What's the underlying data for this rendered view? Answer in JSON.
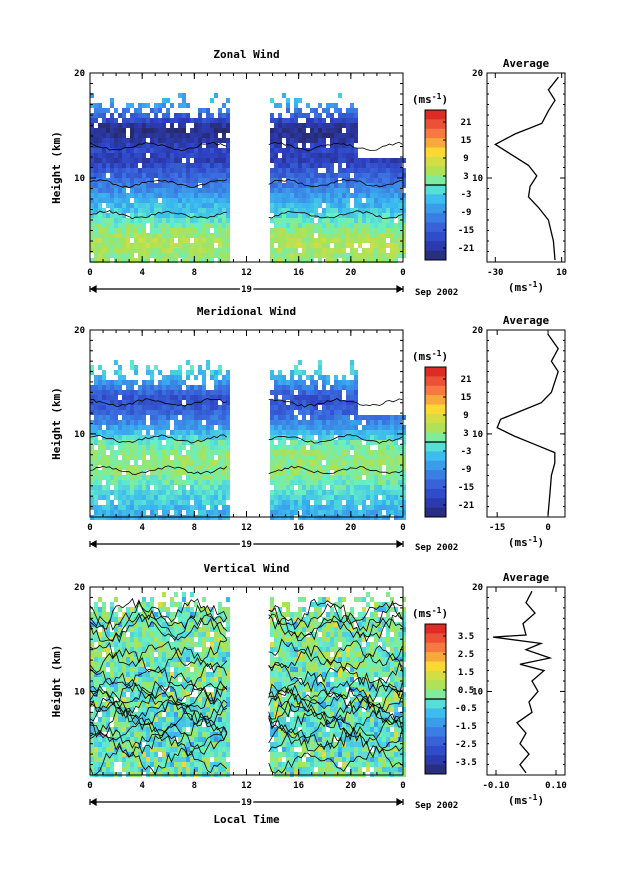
{
  "chart_data": [
    {
      "type": "heatmap",
      "title": "Zonal Wind",
      "ylabel": "Height (km)",
      "yticks": [
        "10",
        "20"
      ],
      "xticks": [
        "0",
        "4",
        "8",
        "12",
        "16",
        "20",
        "0"
      ],
      "day_label": "19",
      "date_label": "Sep 2002",
      "colorbar_unit": "(ms",
      "colorbar_unit_sup": "-1",
      "colorbar_unit_end": ")",
      "colorbar_ticks": [
        "21",
        "15",
        "9",
        "3",
        "-3",
        "-9",
        "-15",
        "-21"
      ],
      "colorbar_range": [
        -24,
        24
      ],
      "ylim": [
        2,
        20
      ],
      "xlim": [
        0,
        24
      ],
      "data_gap_hours": [
        10.5,
        13.7
      ],
      "rows": [
        {
          "h": 17.5,
          "v": -5
        },
        {
          "h": 16.5,
          "v": -12
        },
        {
          "h": 15.0,
          "v": -22
        },
        {
          "h": 14.0,
          "v": -21
        },
        {
          "h": 13.0,
          "v": -17
        },
        {
          "h": 12.0,
          "v": -19
        },
        {
          "h": 11.0,
          "v": -15
        },
        {
          "h": 10.0,
          "v": -12
        },
        {
          "h": 9.0,
          "v": -9
        },
        {
          "h": 8.0,
          "v": -6
        },
        {
          "h": 7.0,
          "v": -3
        },
        {
          "h": 6.0,
          "v": 0
        },
        {
          "h": 5.0,
          "v": 3
        },
        {
          "h": 4.0,
          "v": 5
        },
        {
          "h": 3.0,
          "v": 3
        }
      ],
      "average": {
        "title": "Average",
        "xticks": [
          "-30",
          "10"
        ],
        "xlim": [
          -35,
          12
        ],
        "ylim": [
          2,
          20
        ],
        "yticks": [
          "10",
          "20"
        ],
        "xlabel": "(ms",
        "xlabel_sup": "-1",
        "xlabel_end": ")",
        "profile": [
          {
            "h": 2.2,
            "v": 6
          },
          {
            "h": 4,
            "v": 5
          },
          {
            "h": 6,
            "v": 2
          },
          {
            "h": 7.2,
            "v": -4
          },
          {
            "h": 8.2,
            "v": -10
          },
          {
            "h": 9.2,
            "v": -9
          },
          {
            "h": 10.2,
            "v": -5
          },
          {
            "h": 11.2,
            "v": -10
          },
          {
            "h": 12.4,
            "v": -22
          },
          {
            "h": 13.2,
            "v": -30
          },
          {
            "h": 14.2,
            "v": -18
          },
          {
            "h": 15.2,
            "v": -2
          },
          {
            "h": 16.4,
            "v": 2
          },
          {
            "h": 17.4,
            "v": 6
          },
          {
            "h": 18.4,
            "v": 2
          },
          {
            "h": 19.6,
            "v": 8
          }
        ]
      }
    },
    {
      "type": "heatmap",
      "title": "Meridional Wind",
      "ylabel": "Height (km)",
      "yticks": [
        "10",
        "20"
      ],
      "xticks": [
        "0",
        "4",
        "8",
        "12",
        "16",
        "20",
        "0"
      ],
      "day_label": "19",
      "date_label": "Sep 2002",
      "colorbar_unit": "(ms",
      "colorbar_unit_sup": "-1",
      "colorbar_unit_end": ")",
      "colorbar_ticks": [
        "21",
        "15",
        "9",
        "3",
        "-3",
        "-9",
        "-15",
        "-21"
      ],
      "colorbar_range": [
        -24,
        24
      ],
      "ylim": [
        2,
        20
      ],
      "xlim": [
        0,
        24
      ],
      "data_gap_hours": [
        10.5,
        13.7
      ],
      "rows": [
        {
          "h": 16.5,
          "v": -2
        },
        {
          "h": 15.5,
          "v": -6
        },
        {
          "h": 14.5,
          "v": -12
        },
        {
          "h": 13.5,
          "v": -16
        },
        {
          "h": 12.5,
          "v": -14
        },
        {
          "h": 11.5,
          "v": -10
        },
        {
          "h": 10.5,
          "v": -6
        },
        {
          "h": 9.5,
          "v": 0
        },
        {
          "h": 8.5,
          "v": 2
        },
        {
          "h": 7.5,
          "v": 3
        },
        {
          "h": 6.5,
          "v": 2
        },
        {
          "h": 5.5,
          "v": 0
        },
        {
          "h": 4.5,
          "v": -2
        },
        {
          "h": 3.5,
          "v": -4
        },
        {
          "h": 2.5,
          "v": -6
        }
      ],
      "average": {
        "title": "Average",
        "xticks": [
          "-15",
          "0"
        ],
        "xlim": [
          -18,
          5
        ],
        "ylim": [
          2,
          20
        ],
        "yticks": [
          "10",
          "20"
        ],
        "xlabel": "(ms",
        "xlabel_sup": "-1",
        "xlabel_end": ")",
        "profile": [
          {
            "h": 2.2,
            "v": 0
          },
          {
            "h": 4,
            "v": 0.5
          },
          {
            "h": 6,
            "v": 1
          },
          {
            "h": 7.2,
            "v": 2
          },
          {
            "h": 8.2,
            "v": 2
          },
          {
            "h": 9.0,
            "v": -4
          },
          {
            "h": 9.8,
            "v": -10
          },
          {
            "h": 10.6,
            "v": -15
          },
          {
            "h": 11.4,
            "v": -14
          },
          {
            "h": 12.2,
            "v": -8
          },
          {
            "h": 13.0,
            "v": -2
          },
          {
            "h": 14.0,
            "v": 1
          },
          {
            "h": 15.0,
            "v": 2
          },
          {
            "h": 16.0,
            "v": 3
          },
          {
            "h": 17.0,
            "v": 1
          },
          {
            "h": 18.2,
            "v": 3
          },
          {
            "h": 19.6,
            "v": 0
          }
        ]
      }
    },
    {
      "type": "heatmap",
      "title": "Vertical Wind",
      "ylabel": "Height (km)",
      "xlabel": "Local Time",
      "yticks": [
        "10",
        "20"
      ],
      "xticks": [
        "0",
        "4",
        "8",
        "12",
        "16",
        "20",
        "0"
      ],
      "day_label": "19",
      "date_label": "Sep 2002",
      "colorbar_unit": "(ms",
      "colorbar_unit_sup": "-1",
      "colorbar_unit_end": ")",
      "colorbar_ticks": [
        "3.5",
        "2.5",
        "1.5",
        "0.5",
        "-0.5",
        "-1.5",
        "-2.5",
        "-3.5"
      ],
      "colorbar_range": [
        -4,
        4
      ],
      "ylim": [
        2,
        20
      ],
      "xlim": [
        0,
        24
      ],
      "data_gap_hours": [
        10.5,
        13.7
      ],
      "rows": [
        {
          "h": 19,
          "v": 0.2
        },
        {
          "h": 17,
          "v": 0.1
        },
        {
          "h": 15,
          "v": 0.3
        },
        {
          "h": 13,
          "v": 0.2
        },
        {
          "h": 11,
          "v": 0
        },
        {
          "h": 9,
          "v": 0.1
        },
        {
          "h": 7,
          "v": -0.2
        },
        {
          "h": 5,
          "v": 0
        },
        {
          "h": 3,
          "v": 0.1
        }
      ],
      "average": {
        "title": "Average",
        "xticks": [
          "-0.10",
          "0.10"
        ],
        "xlim": [
          -0.13,
          0.13
        ],
        "ylim": [
          2,
          20
        ],
        "yticks": [
          "10",
          "20"
        ],
        "xlabel": "(ms",
        "xlabel_sup": "-1",
        "xlabel_end": ")",
        "profile": [
          {
            "h": 2.2,
            "v": 0.0
          },
          {
            "h": 3,
            "v": -0.02
          },
          {
            "h": 4,
            "v": 0.01
          },
          {
            "h": 5,
            "v": -0.02
          },
          {
            "h": 6,
            "v": 0.0
          },
          {
            "h": 7,
            "v": -0.03
          },
          {
            "h": 8,
            "v": 0.02
          },
          {
            "h": 9,
            "v": 0.01
          },
          {
            "h": 10,
            "v": 0.04
          },
          {
            "h": 11,
            "v": 0.02
          },
          {
            "h": 12,
            "v": 0.06
          },
          {
            "h": 12.6,
            "v": -0.02
          },
          {
            "h": 13.2,
            "v": 0.08
          },
          {
            "h": 14,
            "v": 0.0
          },
          {
            "h": 14.6,
            "v": 0.05
          },
          {
            "h": 15.2,
            "v": -0.11
          },
          {
            "h": 15.4,
            "v": 0.0
          },
          {
            "h": 16.5,
            "v": -0.01
          },
          {
            "h": 17.5,
            "v": 0.03
          },
          {
            "h": 18.5,
            "v": 0.0
          },
          {
            "h": 19.6,
            "v": 0.02
          }
        ]
      }
    }
  ]
}
